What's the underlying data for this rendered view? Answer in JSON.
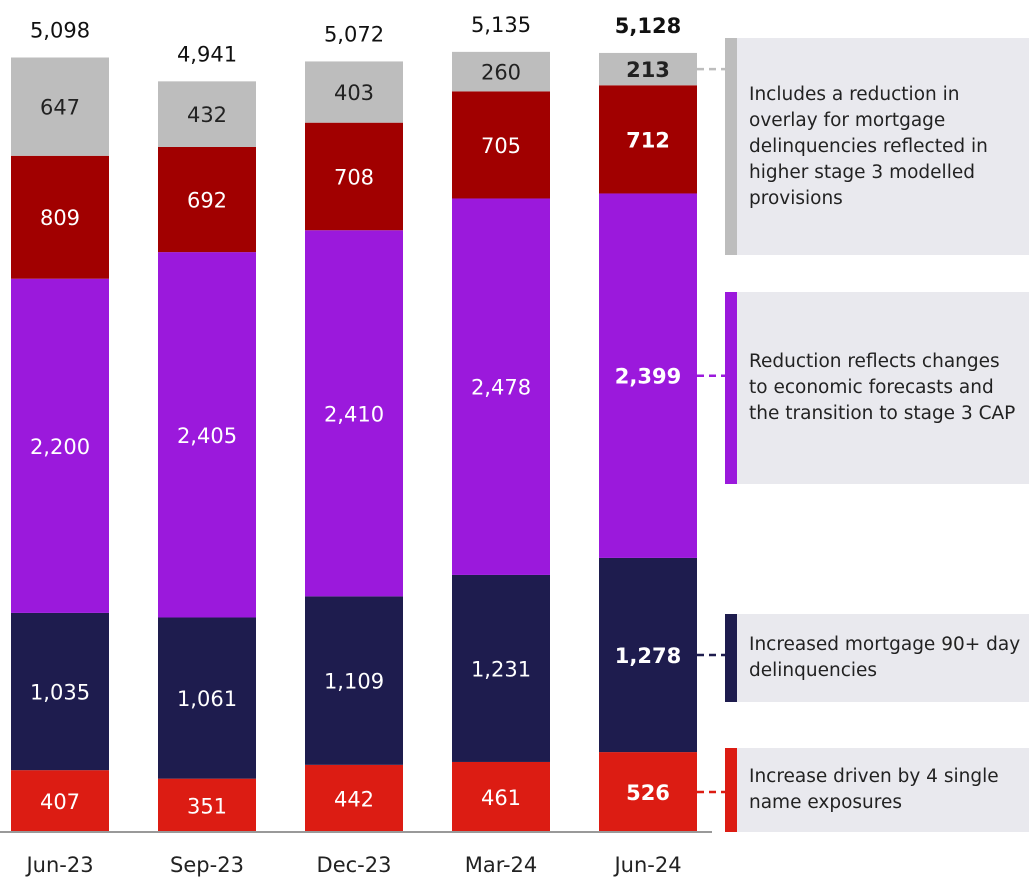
{
  "chart_data": {
    "type": "stacked_bar",
    "categories": [
      "Jun-23",
      "Sep-23",
      "Dec-23",
      "Mar-24",
      "Jun-24"
    ],
    "series": [
      {
        "color": "#dc1c13",
        "values": [
          407,
          351,
          442,
          461,
          526
        ],
        "value_labels": [
          "407",
          "351",
          "442",
          "461",
          "526"
        ]
      },
      {
        "color": "#1e1c4e",
        "values": [
          1035,
          1061,
          1109,
          1231,
          1278
        ],
        "value_labels": [
          "1,035",
          "1,061",
          "1,109",
          "1,231",
          "1,278"
        ]
      },
      {
        "color": "#9b19dc",
        "values": [
          2200,
          2405,
          2410,
          2478,
          2399
        ],
        "value_labels": [
          "2,200",
          "2,405",
          "2,410",
          "2,478",
          "2,399"
        ]
      },
      {
        "color": "#a10000",
        "values": [
          809,
          692,
          708,
          705,
          712
        ],
        "value_labels": [
          "809",
          "692",
          "708",
          "705",
          "712"
        ]
      },
      {
        "color": "#bdbdbd",
        "values": [
          647,
          432,
          403,
          260,
          213
        ],
        "value_labels": [
          "647",
          "432",
          "403",
          "260",
          "213"
        ]
      }
    ],
    "totals": [
      5098,
      4941,
      5072,
      5135,
      5128
    ],
    "total_labels": [
      "5,098",
      "4,941",
      "5,072",
      "5,135",
      "5,128"
    ],
    "ylim": [
      0,
      5200
    ],
    "annotations": [
      "Includes a reduction in overlay for mortgage delinquencies reflected in higher stage 3 modelled provisions",
      "Reduction reflects changes to economic forecasts and the transition to stage 3 CAP",
      "Increased mortgage 90+ day delinquencies",
      "Increase driven by 4 single name exposures"
    ]
  }
}
